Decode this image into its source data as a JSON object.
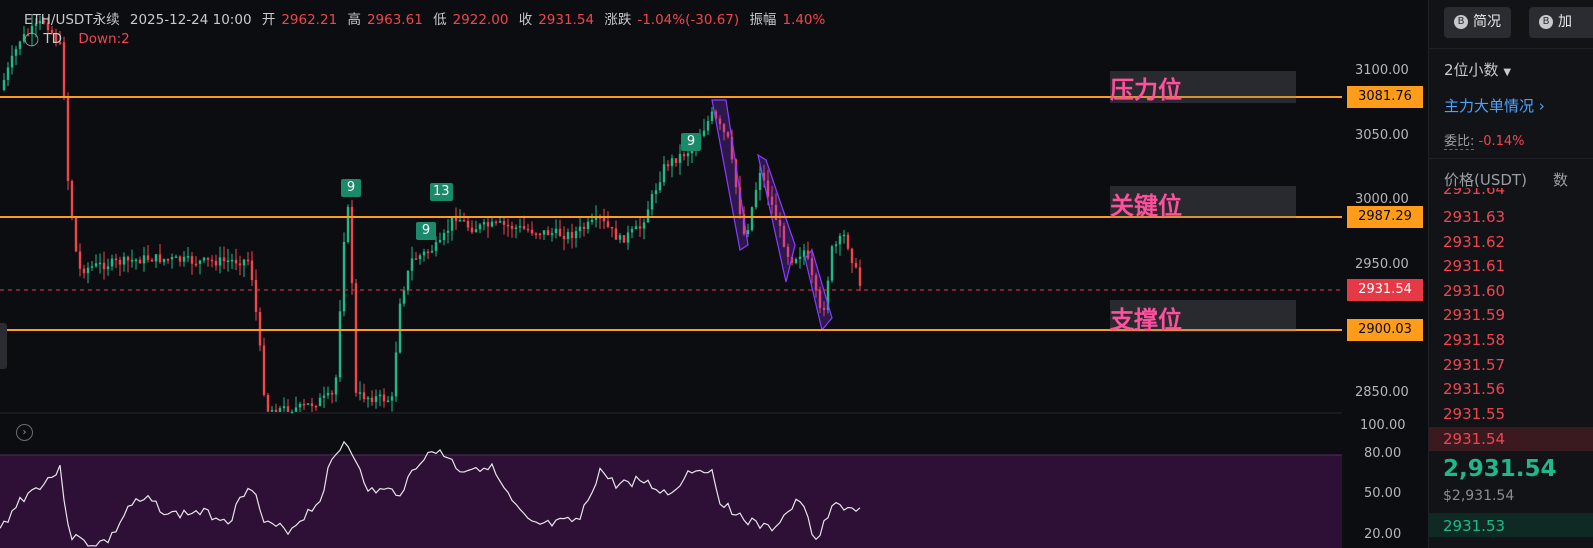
{
  "header": {
    "symbol": "ETH/USDT永续",
    "datetime": "2025-12-24 10:00",
    "open_label": "开",
    "open": "2962.21",
    "high_label": "高",
    "high": "2963.61",
    "low_label": "低",
    "low": "2922.00",
    "close_label": "收",
    "close": "2931.54",
    "change_label": "涨跌",
    "change": "-1.04%(-30.67)",
    "amplitude_label": "振幅",
    "amplitude": "1.40%"
  },
  "indicator": {
    "name": "TD",
    "value": "Down:2"
  },
  "yaxis_labels": [
    "3100.00",
    "3050.00",
    "3000.00",
    "2950.00",
    "2850.00"
  ],
  "oscillator_labels": [
    "100.00",
    "80.00",
    "50.00",
    "20.00"
  ],
  "levels": [
    {
      "label": "压力位",
      "price": "3081.76"
    },
    {
      "label": "关键位",
      "price": "2987.29"
    },
    {
      "label": "支撑位",
      "price": "2900.03"
    }
  ],
  "current_price_tag": "2931.54",
  "td_counts": [
    "9",
    "9",
    "13",
    "9"
  ],
  "colors": {
    "level": "#ff9c1a",
    "up": "#1fb987",
    "down": "#f0454f",
    "channel": "#8a3cff",
    "zone_label": "#ff4f9d",
    "oscillator_bg": "#2e0f35"
  },
  "right_panel": {
    "btn_simple": "简况",
    "btn_add": "加",
    "decimals": "2位小数",
    "main_orders": "主力大单情况",
    "ratio_label": "委比:",
    "ratio_value": "-0.14%",
    "price_header": "价格(USDT)",
    "count_header": "数",
    "asks": [
      "2931.64",
      "2931.63",
      "2931.62",
      "2931.61",
      "2931.60",
      "2931.59",
      "2931.58",
      "2931.57",
      "2931.56",
      "2931.55",
      "2931.54"
    ],
    "last_price": "2,931.54",
    "last_price_usd": "$2,931.54",
    "bid_first": "2931.53"
  }
}
